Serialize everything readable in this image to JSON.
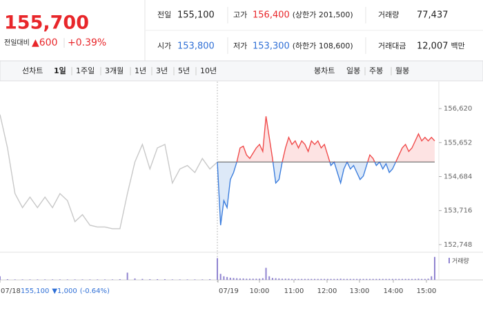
{
  "quote": {
    "price": "155,700",
    "change_label": "전일대비",
    "change": "▲600",
    "change_pct": "+0.39%"
  },
  "info": [
    [
      {
        "label": "전일",
        "value": "155,100",
        "color": "#222222"
      },
      {
        "label": "고가",
        "value": "156,400",
        "note": "(상한가 201,500)",
        "color": "#e8262a"
      },
      {
        "label": "거래량",
        "value": "77,437",
        "color": "#222222"
      }
    ],
    [
      {
        "label": "시가",
        "value": "153,800",
        "color": "#2f6fd6"
      },
      {
        "label": "저가",
        "value": "153,300",
        "note": "(하한가 108,600)",
        "color": "#2f6fd6"
      },
      {
        "label": "거래대금",
        "value": "12,007",
        "note": "백만",
        "color": "#222222"
      }
    ]
  ],
  "tabs": {
    "line_label": "선차트",
    "line": [
      "1일",
      "1주일",
      "3개월",
      "1년",
      "3년",
      "5년",
      "10년"
    ],
    "selected": 0,
    "candle_label": "봉차트",
    "candle": [
      "일봉",
      "주봉",
      "월봉"
    ]
  },
  "chart_data": {
    "type": "line",
    "ylim": [
      152530,
      157350
    ],
    "yticks": [
      {
        "value": 156620,
        "label": "156,620"
      },
      {
        "value": 155652,
        "label": "155,652"
      },
      {
        "value": 154684,
        "label": "154,684"
      },
      {
        "value": 153716,
        "label": "153,716"
      },
      {
        "value": 152748,
        "label": "152,748"
      }
    ],
    "baseline": 155100,
    "xtick_labels": [
      "07/18",
      "07/19",
      "10:00",
      "11:00",
      "12:00",
      "13:00",
      "14:00",
      "15:00"
    ],
    "series": [
      {
        "color": "#c8c8c8",
        "values": [
          156450,
          155500,
          154200,
          153800,
          154100,
          153800,
          154100,
          153800,
          154200,
          154000,
          153400,
          153600,
          153300,
          153250,
          153250,
          153200,
          153200,
          154200,
          155100,
          155600,
          154900,
          155500,
          155600,
          154500,
          154900,
          155000,
          154800,
          155200,
          154900,
          155100
        ]
      },
      {
        "color": "#f04a4a",
        "down_color": "#3b7ddd",
        "fill": "#fde3e3",
        "down_fill": "#dde9f8",
        "values": [
          155100,
          153300,
          154000,
          153800,
          154600,
          154800,
          155100,
          155500,
          155550,
          155300,
          155200,
          155350,
          155500,
          155600,
          155400,
          156400,
          155800,
          155200,
          154500,
          154600,
          155100,
          155500,
          155800,
          155600,
          155700,
          155500,
          155700,
          155600,
          155400,
          155700,
          155600,
          155700,
          155500,
          155600,
          155300,
          155000,
          155100,
          154800,
          154500,
          154900,
          155100,
          154900,
          155000,
          154800,
          154600,
          154700,
          155000,
          155300,
          155200,
          155000,
          155100,
          154900,
          155050,
          154800,
          154900,
          155100,
          155300,
          155500,
          155600,
          155400,
          155500,
          155700,
          155900,
          155700,
          155800,
          155700,
          155800,
          155700
        ]
      }
    ],
    "volume": {
      "name": "거래량",
      "color": "#8f83d0",
      "y2lim": [
        0,
        10000
      ],
      "prev": [
        1500,
        300,
        200,
        200,
        200,
        200,
        200,
        200,
        200,
        200,
        200,
        200,
        200,
        200,
        200,
        200,
        300,
        3000,
        600,
        400,
        300,
        300,
        300,
        200,
        200,
        200,
        200,
        200,
        300,
        400
      ],
      "today": [
        9000,
        2500,
        1500,
        1200,
        900,
        800,
        700,
        600,
        600,
        500,
        500,
        500,
        500,
        500,
        700,
        5000,
        1500,
        800,
        700,
        600,
        500,
        500,
        500,
        400,
        400,
        400,
        400,
        400,
        400,
        400,
        400,
        400,
        400,
        400,
        400,
        400,
        400,
        400,
        500,
        400,
        400,
        400,
        400,
        400,
        400,
        400,
        400,
        400,
        400,
        400,
        400,
        400,
        400,
        400,
        400,
        400,
        400,
        400,
        400,
        400,
        400,
        400,
        500,
        400,
        400,
        500,
        1500,
        9500
      ]
    },
    "footer": {
      "date": "07/18",
      "price": "155,100",
      "change": "▼1,000",
      "pct": "(-0.64%)"
    }
  }
}
